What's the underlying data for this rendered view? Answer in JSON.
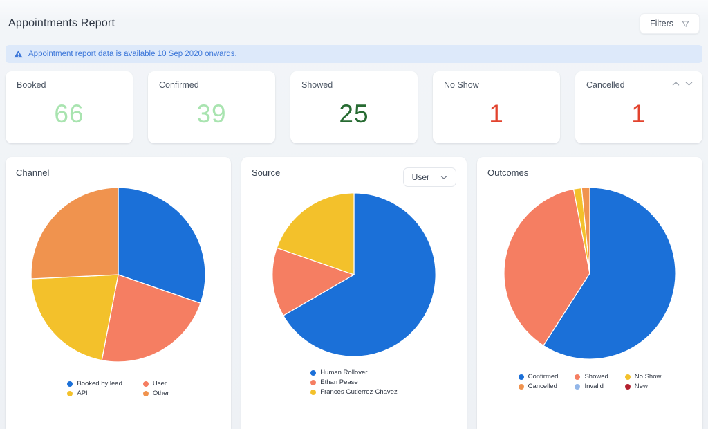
{
  "header": {
    "title": "Appointments Report",
    "filters_label": "Filters",
    "filters_icon": "funnel-icon"
  },
  "banner": {
    "icon": "warning-triangle-icon",
    "text": "Appointment report data is available 10 Sep 2020 onwards."
  },
  "stats": [
    {
      "label": "Booked",
      "value": "66",
      "color": "#a9e4b0"
    },
    {
      "label": "Confirmed",
      "value": "39",
      "color": "#a9e4b0"
    },
    {
      "label": "Showed",
      "value": "25",
      "color": "#276b32"
    },
    {
      "label": "No Show",
      "value": "1",
      "color": "#e2432e"
    },
    {
      "label": "Cancelled",
      "value": "1",
      "color": "#e2432e"
    }
  ],
  "chart_data": [
    {
      "type": "pie",
      "title": "Channel",
      "total": 66,
      "start_angle_deg": 0,
      "direction": "clockwise",
      "slices": [
        {
          "label": "Booked by lead",
          "value": 20,
          "pct": 30.3,
          "color": "#1b70d8"
        },
        {
          "label": "User",
          "value": 15,
          "pct": 22.7,
          "color": "#f57e62"
        },
        {
          "label": "API",
          "value": 14,
          "pct": 21.2,
          "color": "#f3c12b"
        },
        {
          "label": "Other",
          "value": 17,
          "pct": 25.8,
          "color": "#f0934e"
        }
      ],
      "legend": {
        "position": "bottom",
        "rows": 2,
        "items": [
          {
            "label": "Booked by lead",
            "color": "#1b70d8"
          },
          {
            "label": "API",
            "color": "#f3c12b"
          },
          {
            "label": "User",
            "color": "#f57e62"
          },
          {
            "label": "Other",
            "color": "#f0934e"
          }
        ]
      }
    },
    {
      "type": "pie",
      "title": "Source",
      "dropdown": {
        "value": "User",
        "icon": "chevron-down-icon"
      },
      "total": 66,
      "start_angle_deg": 0,
      "direction": "clockwise",
      "slices": [
        {
          "label": "Human Rollover",
          "value": 44,
          "pct": 66.7,
          "color": "#1b70d8"
        },
        {
          "label": "Ethan Pease",
          "value": 9,
          "pct": 13.6,
          "color": "#f57e62"
        },
        {
          "label": "Frances Gutierrez-Chavez",
          "value": 13,
          "pct": 19.7,
          "color": "#f3c12b"
        }
      ],
      "legend": {
        "position": "bottom",
        "rows": 3,
        "items": [
          {
            "label": "Human Rollover",
            "color": "#1b70d8"
          },
          {
            "label": "Ethan Pease",
            "color": "#f57e62"
          },
          {
            "label": "Frances Gutierrez-Chavez",
            "color": "#f3c12b"
          }
        ]
      }
    },
    {
      "type": "pie",
      "title": "Outcomes",
      "total": 66,
      "start_angle_deg": 0,
      "direction": "clockwise",
      "slices": [
        {
          "label": "Confirmed",
          "value": 39,
          "pct": 59.1,
          "color": "#1b70d8"
        },
        {
          "label": "Showed",
          "value": 25,
          "pct": 37.9,
          "color": "#f57e62"
        },
        {
          "label": "No Show",
          "value": 1,
          "pct": 1.5,
          "color": "#f3c12b"
        },
        {
          "label": "Cancelled",
          "value": 1,
          "pct": 1.5,
          "color": "#f0934e"
        }
      ],
      "legend": {
        "position": "bottom",
        "rows": 2,
        "items": [
          {
            "label": "Confirmed",
            "color": "#1b70d8"
          },
          {
            "label": "Cancelled",
            "color": "#f0934e"
          },
          {
            "label": "Showed",
            "color": "#f57e62"
          },
          {
            "label": "Invalid",
            "color": "#93b6e8"
          },
          {
            "label": "No Show",
            "color": "#f3c12b"
          },
          {
            "label": "New",
            "color": "#b3202e"
          }
        ]
      }
    }
  ]
}
